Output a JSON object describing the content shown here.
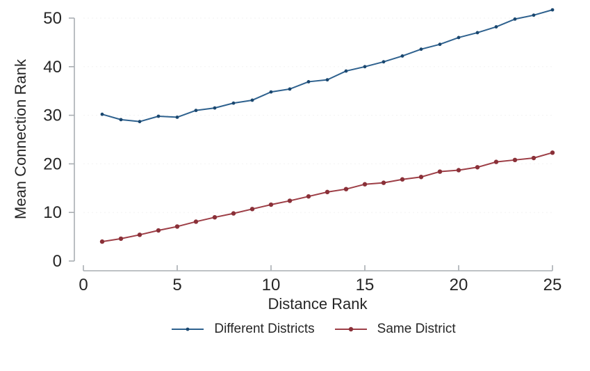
{
  "chart_data": {
    "type": "line",
    "title": "",
    "xlabel": "Distance Rank",
    "ylabel": "Mean Connection Rank",
    "xlim": [
      0,
      25
    ],
    "ylim": [
      0,
      52
    ],
    "xticks": [
      0,
      5,
      10,
      15,
      20,
      25
    ],
    "yticks": [
      0,
      10,
      20,
      30,
      40,
      50
    ],
    "grid": "very faint dotted horizontal gridlines",
    "legend_position": "bottom-center",
    "background": "#ffffff",
    "axis_color": "#a9aeb2",
    "text_color": "#262626",
    "x": [
      1,
      2,
      3,
      4,
      5,
      6,
      7,
      8,
      9,
      10,
      11,
      12,
      13,
      14,
      15,
      16,
      17,
      18,
      19,
      20,
      21,
      22,
      23,
      24,
      25
    ],
    "series": [
      {
        "name": "Different Districts",
        "line_color": "#2e618e",
        "marker_color": "#1a476f",
        "marker_radius": 2.4,
        "values": [
          30.2,
          29.1,
          28.7,
          29.8,
          29.6,
          31.0,
          31.5,
          32.5,
          33.1,
          34.8,
          35.4,
          36.9,
          37.3,
          39.1,
          40.0,
          41.0,
          42.2,
          43.6,
          44.6,
          46.0,
          47.0,
          48.2,
          49.8,
          50.6,
          51.7
        ]
      },
      {
        "name": "Same District",
        "line_color": "#9d3e46",
        "marker_color": "#8a3038",
        "marker_radius": 3.2,
        "values": [
          4.0,
          4.6,
          5.4,
          6.3,
          7.1,
          8.1,
          9.0,
          9.8,
          10.7,
          11.6,
          12.4,
          13.3,
          14.2,
          14.8,
          15.8,
          16.1,
          16.8,
          17.3,
          18.4,
          18.7,
          19.3,
          20.4,
          20.8,
          21.2,
          22.3
        ]
      }
    ]
  }
}
